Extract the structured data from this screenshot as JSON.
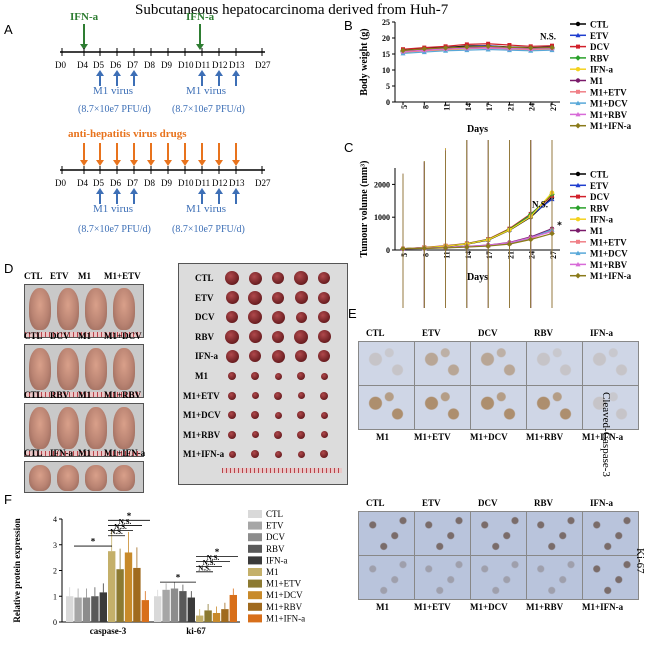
{
  "title": "Subcutaneous hepatocarcinoma derived from Huh-7",
  "panels": {
    "A": "A",
    "B": "B",
    "C": "C",
    "D": "D",
    "E": "E",
    "F": "F"
  },
  "panelA": {
    "ifn_label": "IFN-a",
    "drugs_label": "anti-hepatitis virus drugs",
    "days": [
      "D0",
      "D4",
      "D5",
      "D6",
      "D7",
      "D8",
      "D9",
      "D10",
      "D11",
      "D12",
      "D13",
      "D27"
    ],
    "virus_label": "M1 virus",
    "dose_label": "(8.7×10e7 PFU/d)",
    "ifn_color": "#2e7d32",
    "drug_color": "#e8731d",
    "virus_color": "#3d6fb6"
  },
  "legend_groups": [
    "CTL",
    "ETV",
    "DCV",
    "RBV",
    "IFN-a",
    "M1",
    "M1+ETV",
    "M1+DCV",
    "M1+RBV",
    "M1+IFN-a"
  ],
  "line_colors": [
    "#000000",
    "#1f3fcf",
    "#d11f2a",
    "#2aa02a",
    "#f4d21f",
    "#7a1a6a",
    "#f07f86",
    "#58a8d8",
    "#d86bd8",
    "#8a7a1a"
  ],
  "chart_data": [
    {
      "type": "line",
      "title": "",
      "xlabel": "Days",
      "ylabel": "Body weight (g)",
      "ylim": [
        0,
        25
      ],
      "yticks": [
        "0",
        "5",
        "10",
        "15",
        "20",
        "25"
      ],
      "categories": [
        "5",
        "8",
        "11",
        "14",
        "17",
        "21",
        "24",
        "27"
      ],
      "annotation": "N.S.",
      "series": [
        {
          "name": "CTL",
          "values": [
            16.2,
            16.8,
            17.0,
            17.5,
            17.6,
            17.2,
            17.0,
            17.2
          ]
        },
        {
          "name": "ETV",
          "values": [
            16.0,
            16.4,
            16.8,
            17.2,
            17.6,
            17.0,
            16.8,
            17.0
          ]
        },
        {
          "name": "DCV",
          "values": [
            16.5,
            17.0,
            17.4,
            18.0,
            18.2,
            17.8,
            17.4,
            17.6
          ]
        },
        {
          "name": "RBV",
          "values": [
            15.8,
            16.2,
            16.6,
            16.8,
            17.0,
            16.8,
            16.6,
            16.8
          ]
        },
        {
          "name": "IFN-a",
          "values": [
            15.5,
            16.0,
            16.2,
            16.6,
            17.0,
            16.6,
            16.2,
            16.4
          ]
        },
        {
          "name": "M1",
          "values": [
            16.0,
            16.4,
            16.8,
            17.0,
            17.2,
            17.0,
            16.8,
            17.0
          ]
        },
        {
          "name": "M1+ETV",
          "values": [
            15.6,
            16.0,
            16.4,
            16.8,
            16.8,
            16.6,
            16.4,
            16.6
          ]
        },
        {
          "name": "M1+DCV",
          "values": [
            15.2,
            15.6,
            16.0,
            16.2,
            16.4,
            16.2,
            16.0,
            16.2
          ]
        },
        {
          "name": "M1+RBV",
          "values": [
            15.8,
            16.2,
            16.6,
            16.8,
            17.0,
            16.8,
            16.6,
            16.8
          ]
        },
        {
          "name": "M1+IFN-a",
          "values": [
            16.1,
            16.6,
            16.9,
            17.2,
            17.4,
            17.1,
            16.9,
            17.0
          ]
        }
      ]
    },
    {
      "type": "line",
      "title": "",
      "xlabel": "Days",
      "ylabel": "Tumour volume (mm³)",
      "ylim": [
        0,
        2500
      ],
      "yticks": [
        "0",
        "1000",
        "2000"
      ],
      "categories": [
        "5",
        "8",
        "11",
        "14",
        "17",
        "21",
        "24",
        "27"
      ],
      "annotation": "N.S.",
      "annotation2": "*",
      "series": [
        {
          "name": "CTL",
          "values": [
            40,
            70,
            110,
            180,
            300,
            600,
            1000,
            1600
          ]
        },
        {
          "name": "ETV",
          "values": [
            40,
            75,
            120,
            190,
            320,
            620,
            1050,
            1550
          ]
        },
        {
          "name": "DCV",
          "values": [
            40,
            80,
            130,
            200,
            330,
            650,
            1100,
            1650
          ]
        },
        {
          "name": "RBV",
          "values": [
            40,
            75,
            120,
            190,
            320,
            630,
            1080,
            1700
          ]
        },
        {
          "name": "IFN-a",
          "values": [
            40,
            70,
            115,
            185,
            310,
            610,
            1020,
            1750
          ]
        },
        {
          "name": "M1",
          "values": [
            40,
            55,
            80,
            110,
            150,
            230,
            400,
            650
          ]
        },
        {
          "name": "M1+ETV",
          "values": [
            40,
            50,
            70,
            95,
            130,
            200,
            350,
            600
          ]
        },
        {
          "name": "M1+DCV",
          "values": [
            40,
            50,
            72,
            100,
            140,
            210,
            370,
            620
          ]
        },
        {
          "name": "M1+RBV",
          "values": [
            40,
            52,
            75,
            105,
            145,
            220,
            380,
            560
          ]
        },
        {
          "name": "M1+IFN-a",
          "values": [
            40,
            48,
            65,
            90,
            120,
            180,
            320,
            500
          ]
        }
      ]
    },
    {
      "type": "bar",
      "title": "",
      "xlabel": "",
      "ylabel": "Relative protein expression",
      "ylim": [
        0,
        4
      ],
      "yticks": [
        "0",
        "1",
        "2",
        "3",
        "4"
      ],
      "categories": [
        "caspase-3",
        "ki-67"
      ],
      "annotations": {
        "sig": "*",
        "ns": "N.S."
      },
      "series": [
        {
          "name": "CTL",
          "values": [
            1.0,
            1.0
          ]
        },
        {
          "name": "ETV",
          "values": [
            0.95,
            1.25
          ]
        },
        {
          "name": "DCV",
          "values": [
            0.95,
            1.3
          ]
        },
        {
          "name": "RBV",
          "values": [
            1.0,
            1.2
          ]
        },
        {
          "name": "IFN-a",
          "values": [
            1.15,
            0.95
          ]
        },
        {
          "name": "M1",
          "values": [
            2.75,
            0.25
          ]
        },
        {
          "name": "M1+ETV",
          "values": [
            2.05,
            0.45
          ]
        },
        {
          "name": "M1+DCV",
          "values": [
            2.7,
            0.35
          ]
        },
        {
          "name": "M1+RBV",
          "values": [
            2.1,
            0.5
          ]
        },
        {
          "name": "M1+IFN-a",
          "values": [
            0.85,
            1.05
          ]
        }
      ],
      "bar_colors": [
        "#d9d9d9",
        "#a6a6a6",
        "#8c8c8c",
        "#595959",
        "#3a3a3a",
        "#c4b06a",
        "#8c7a32",
        "#c88a2a",
        "#a06a1e",
        "#d86f1a"
      ]
    }
  ],
  "panelD": {
    "rows": [
      [
        "CTL",
        "ETV",
        "M1",
        "M1+ETV"
      ],
      [
        "CTL",
        "DCV",
        "M1",
        "M1+DCV"
      ],
      [
        "CTL",
        "RBV",
        "M1",
        "M1+RBV"
      ],
      [
        "CTL",
        "IFN-a",
        "M1",
        "M1+IFN-a"
      ]
    ],
    "tumor_labels": [
      "CTL",
      "ETV",
      "DCV",
      "RBV",
      "IFN-a",
      "M1",
      "M1+ETV",
      "M1+DCV",
      "M1+RBV",
      "M1+IFN-a"
    ]
  },
  "panelE": {
    "top_labels": [
      "CTL",
      "ETV",
      "DCV",
      "RBV",
      "IFN-a"
    ],
    "bottom_labels": [
      "M1",
      "M1+ETV",
      "M1+DCV",
      "M1+RBV",
      "M1+IFN-a"
    ],
    "stain1": "Cleaved-Caspase-3",
    "stain2": "Ki-67"
  }
}
